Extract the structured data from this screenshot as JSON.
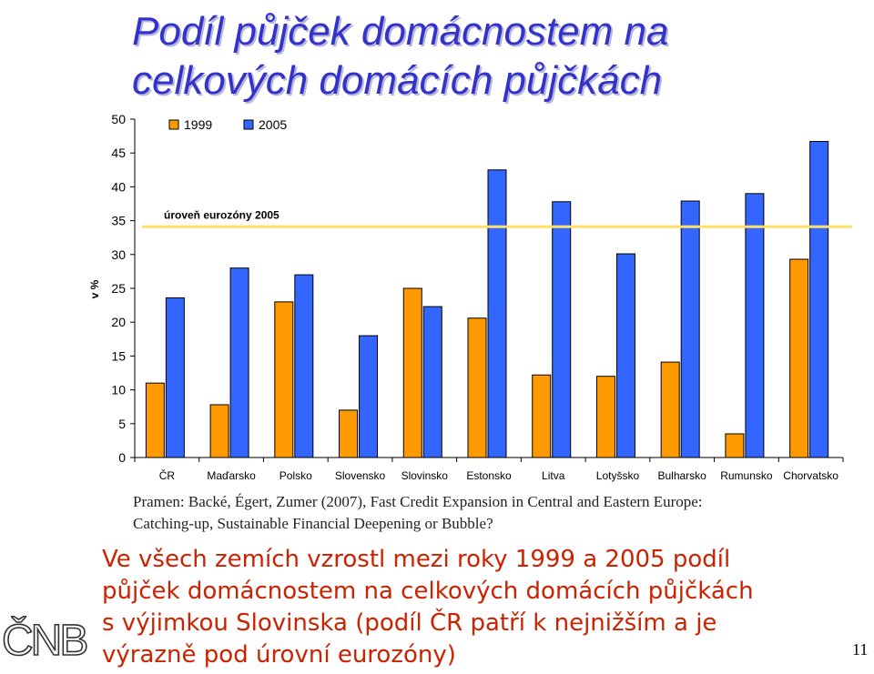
{
  "slide": {
    "title_lines": [
      "Podíl půjček domácnostem na",
      "celkových domácích půjčkách"
    ],
    "source_lines": [
      "Pramen: Backé, Égert, Zumer (2007), Fast Credit Expansion in Central and Eastern Europe:",
      "Catching-up, Sustainable Financial Deepening or Bubble?"
    ],
    "conclusion_lines": [
      "Ve všech zemích vzrostl mezi roky 1999 a 2005 podíl",
      "půjček domácnostem na celkových domácích půjčkách",
      "s výjimkou Slovinska (podíl ČR patří k nejnižším a je",
      "výrazně pod úrovní eurozóny)"
    ],
    "logo": "ČNB",
    "page_number": "11"
  },
  "chart_data": {
    "type": "bar",
    "title": "Podíl půjček domácnostem na celkových domácích půjčkách",
    "ylabel": "v %",
    "xlabel": "",
    "ylim": [
      0,
      50
    ],
    "yticks": [
      0,
      5,
      10,
      15,
      20,
      25,
      30,
      35,
      40,
      45,
      50
    ],
    "categories": [
      "ČR",
      "Maďarsko",
      "Polsko",
      "Slovensko",
      "Slovinsko",
      "Estonsko",
      "Litva",
      "Lotyšsko",
      "Bulharsko",
      "Rumunsko",
      "Chorvatsko"
    ],
    "series": [
      {
        "name": "1999",
        "color": "#ff9900",
        "values": [
          11,
          7.8,
          23,
          7,
          25,
          20.6,
          12.2,
          12,
          14.1,
          3.5,
          29.3
        ]
      },
      {
        "name": "2005",
        "color": "#3366ff",
        "values": [
          23.6,
          28,
          27,
          18,
          22.3,
          42.5,
          37.8,
          30.1,
          37.9,
          39,
          46.7
        ]
      }
    ],
    "reference_line": {
      "label": "úroveň eurozóny 2005",
      "value": 34.1,
      "color": "#ffe066"
    },
    "legend_position": "top-left",
    "grid": false
  }
}
